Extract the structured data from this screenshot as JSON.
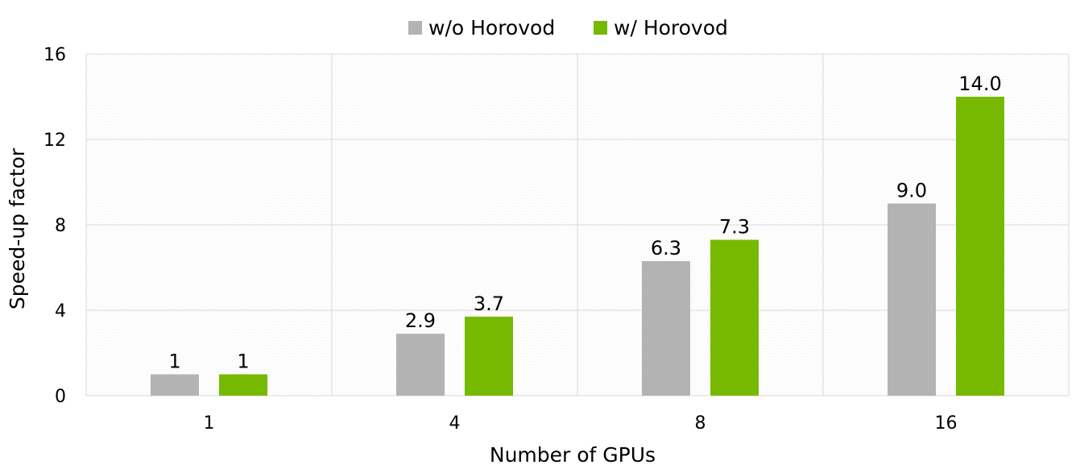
{
  "chart_data": {
    "type": "bar",
    "title": "",
    "xlabel": "Number of GPUs",
    "ylabel": "Speed-up factor",
    "categories": [
      "1",
      "4",
      "8",
      "16"
    ],
    "ylim": [
      0,
      16
    ],
    "yticks": [
      0,
      4,
      8,
      12,
      16
    ],
    "grid": true,
    "legend_position": "top-center",
    "series": [
      {
        "name": "w/o Horovod",
        "color": "#b3b3b3",
        "values": [
          1,
          2.9,
          6.3,
          9.0
        ],
        "labels": [
          "1",
          "2.9",
          "6.3",
          "9.0"
        ]
      },
      {
        "name": "w/ Horovod",
        "color": "#76b900",
        "values": [
          1,
          3.7,
          7.3,
          14.0
        ],
        "labels": [
          "1",
          "3.7",
          "7.3",
          "14.0"
        ]
      }
    ]
  }
}
